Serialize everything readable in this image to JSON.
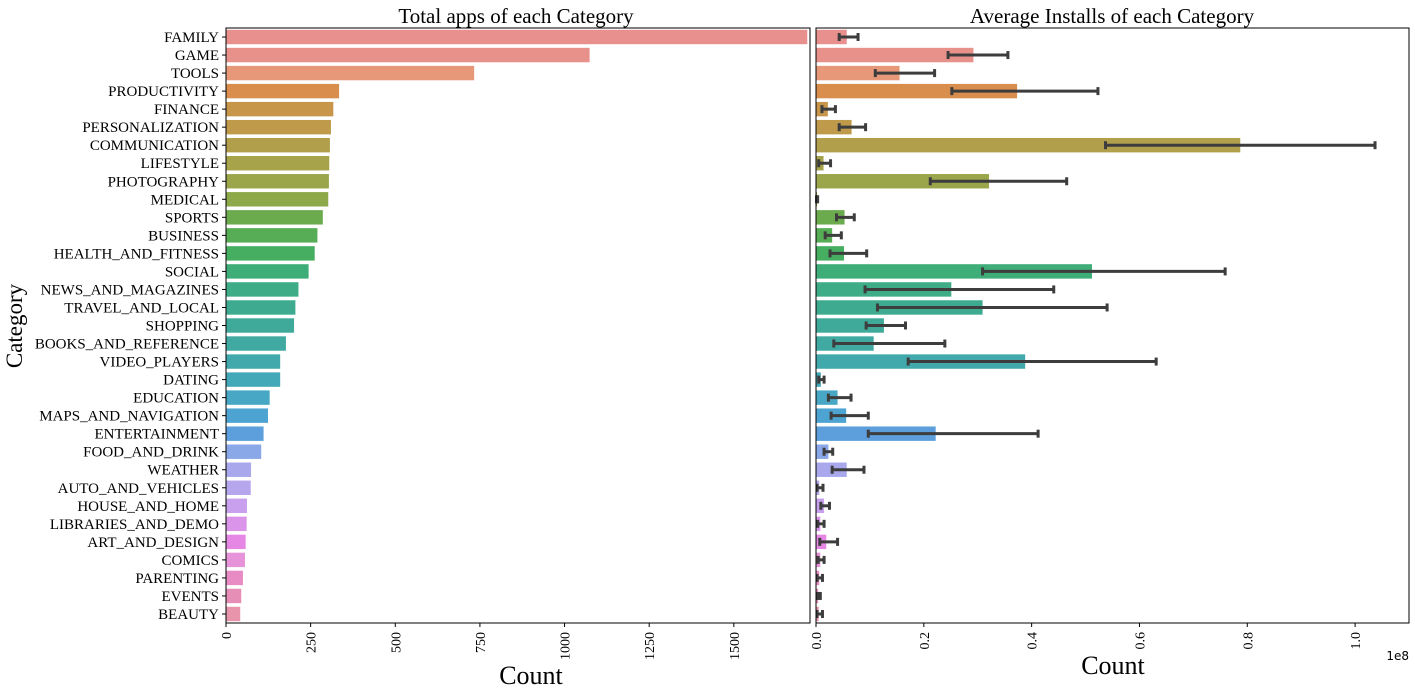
{
  "chart_data": [
    {
      "type": "bar",
      "orientation": "horizontal",
      "title": "Total apps of each Category",
      "xlabel": "Count",
      "ylabel": "Category",
      "xlim": [
        0,
        1725
      ],
      "xticks": [
        0,
        250,
        500,
        750,
        1000,
        1250,
        1500
      ],
      "xtick_labels": [
        "0",
        "250",
        "500",
        "750",
        "1000",
        "1250",
        "1500"
      ],
      "grid": false,
      "categories": [
        "FAMILY",
        "GAME",
        "TOOLS",
        "PRODUCTIVITY",
        "FINANCE",
        "PERSONALIZATION",
        "COMMUNICATION",
        "LIFESTYLE",
        "PHOTOGRAPHY",
        "MEDICAL",
        "SPORTS",
        "BUSINESS",
        "HEALTH_AND_FITNESS",
        "SOCIAL",
        "NEWS_AND_MAGAZINES",
        "TRAVEL_AND_LOCAL",
        "SHOPPING",
        "BOOKS_AND_REFERENCE",
        "VIDEO_PLAYERS",
        "DATING",
        "EDUCATION",
        "MAPS_AND_NAVIGATION",
        "ENTERTAINMENT",
        "FOOD_AND_DRINK",
        "WEATHER",
        "AUTO_AND_VEHICLES",
        "HOUSE_AND_HOME",
        "LIBRARIES_AND_DEMO",
        "ART_AND_DESIGN",
        "COMICS",
        "PARENTING",
        "EVENTS",
        "BEAUTY"
      ],
      "values": [
        1717,
        1074,
        733,
        334,
        317,
        310,
        307,
        305,
        304,
        302,
        286,
        270,
        262,
        244,
        214,
        205,
        201,
        177,
        160,
        160,
        129,
        124,
        111,
        104,
        74,
        73,
        62,
        61,
        58,
        56,
        50,
        45,
        42
      ]
    },
    {
      "type": "bar",
      "orientation": "horizontal",
      "title": "Average Installs of each Category",
      "xlabel": "Count",
      "axis_offset_label": "1e8",
      "xlim": [
        0,
        1.1
      ],
      "xticks": [
        0.0,
        0.2,
        0.4,
        0.6,
        0.8,
        1.0
      ],
      "xtick_labels": [
        "0.0",
        "0.2",
        "0.4",
        "0.6",
        "0.8",
        "1.0"
      ],
      "grid": false,
      "categories": [
        "FAMILY",
        "GAME",
        "TOOLS",
        "PRODUCTIVITY",
        "FINANCE",
        "PERSONALIZATION",
        "COMMUNICATION",
        "LIFESTYLE",
        "PHOTOGRAPHY",
        "MEDICAL",
        "SPORTS",
        "BUSINESS",
        "HEALTH_AND_FITNESS",
        "SOCIAL",
        "NEWS_AND_MAGAZINES",
        "TRAVEL_AND_LOCAL",
        "SHOPPING",
        "BOOKS_AND_REFERENCE",
        "VIDEO_PLAYERS",
        "DATING",
        "EDUCATION",
        "MAPS_AND_NAVIGATION",
        "ENTERTAINMENT",
        "FOOD_AND_DRINK",
        "WEATHER",
        "AUTO_AND_VEHICLES",
        "HOUSE_AND_HOME",
        "LIBRARIES_AND_DEMO",
        "ART_AND_DESIGN",
        "COMICS",
        "PARENTING",
        "EVENTS",
        "BEAUTY"
      ],
      "values": [
        0.057,
        0.292,
        0.155,
        0.373,
        0.022,
        0.066,
        0.787,
        0.014,
        0.321,
        0.002,
        0.053,
        0.03,
        0.052,
        0.512,
        0.251,
        0.309,
        0.126,
        0.107,
        0.388,
        0.009,
        0.04,
        0.056,
        0.222,
        0.023,
        0.057,
        0.006,
        0.015,
        0.008,
        0.019,
        0.008,
        0.006,
        0.004,
        0.005
      ],
      "error_low": [
        0.043,
        0.245,
        0.11,
        0.252,
        0.011,
        0.043,
        0.537,
        0.005,
        0.212,
        0.001,
        0.038,
        0.017,
        0.026,
        0.309,
        0.091,
        0.114,
        0.093,
        0.033,
        0.171,
        0.005,
        0.023,
        0.028,
        0.097,
        0.015,
        0.03,
        0.002,
        0.009,
        0.003,
        0.007,
        0.004,
        0.002,
        0.003,
        0.002
      ],
      "error_high": [
        0.078,
        0.356,
        0.22,
        0.523,
        0.036,
        0.092,
        1.037,
        0.027,
        0.465,
        0.003,
        0.071,
        0.047,
        0.094,
        0.759,
        0.441,
        0.54,
        0.166,
        0.239,
        0.631,
        0.015,
        0.065,
        0.097,
        0.412,
        0.031,
        0.089,
        0.013,
        0.025,
        0.015,
        0.04,
        0.015,
        0.012,
        0.008,
        0.012
      ]
    }
  ],
  "colors": [
    "#E8908E",
    "#E8918A",
    "#E69879",
    "#D98E4D",
    "#C8964A",
    "#BE9A4A",
    "#B29F4B",
    "#A7A34A",
    "#9BA64A",
    "#8DA94A",
    "#6BAB4E",
    "#56AD55",
    "#46AE60",
    "#3FAD78",
    "#3EAC86",
    "#3EAB90",
    "#3FAA99",
    "#40AAA2",
    "#41A9AC",
    "#43A8B7",
    "#49A7C6",
    "#4DA3D2",
    "#5C9FDC",
    "#8AA8E8",
    "#A9A8ED",
    "#B5A6EE",
    "#C8A0EE",
    "#DA95EB",
    "#E687E5",
    "#E793D9",
    "#E88BC4",
    "#E78EB6",
    "#E895AB"
  ]
}
